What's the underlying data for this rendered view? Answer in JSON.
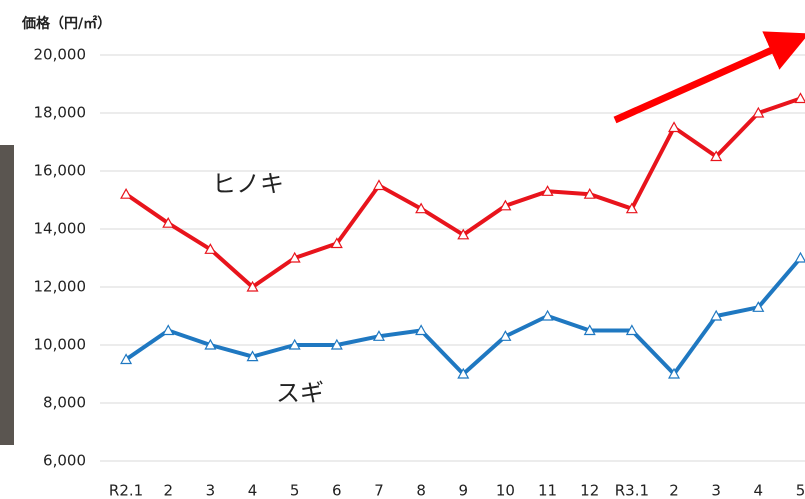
{
  "chart_data": {
    "type": "line",
    "title": "価格（円/㎡）",
    "categories": [
      "R2.1",
      "2",
      "3",
      "4",
      "5",
      "6",
      "7",
      "8",
      "9",
      "10",
      "11",
      "12",
      "R3.1",
      "2",
      "3",
      "4",
      "5"
    ],
    "series": [
      {
        "name": "ヒノキ",
        "color": "#e8141c",
        "values": [
          15200,
          14200,
          13300,
          12000,
          13000,
          13500,
          15500,
          14700,
          13800,
          14800,
          15300,
          15200,
          14700,
          17500,
          16500,
          18000,
          18500
        ]
      },
      {
        "name": "スギ",
        "color": "#1f78c1",
        "values": [
          9500,
          10500,
          10000,
          9600,
          10000,
          10000,
          10300,
          10500,
          9000,
          10300,
          11000,
          10500,
          10500,
          9000,
          11000,
          11300,
          13000
        ]
      }
    ],
    "ylim": [
      6000,
      20000
    ],
    "yticks": [
      {
        "value": 6000,
        "label": "6,000"
      },
      {
        "value": 8000,
        "label": "8,000"
      },
      {
        "value": 10000,
        "label": "10,000"
      },
      {
        "value": 12000,
        "label": "12,000"
      },
      {
        "value": 14000,
        "label": "14,000"
      },
      {
        "value": 16000,
        "label": "16,000"
      },
      {
        "value": 18000,
        "label": "18,000"
      },
      {
        "value": 20000,
        "label": "20,000"
      }
    ],
    "grid": true
  }
}
